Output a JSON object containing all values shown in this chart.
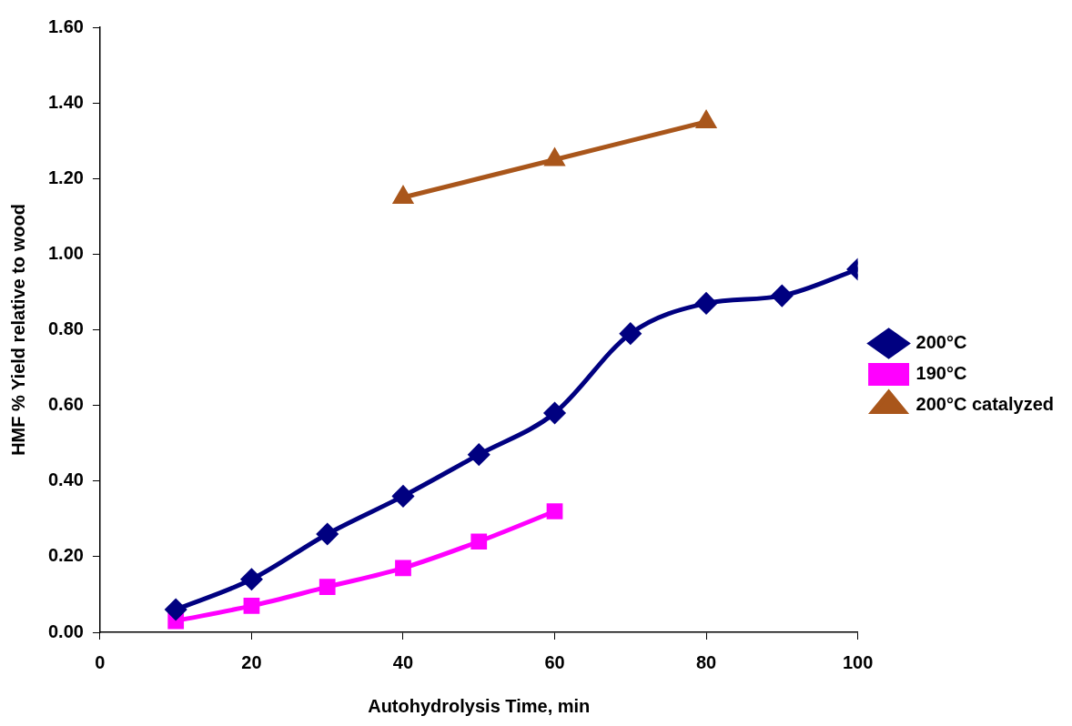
{
  "chart_data": {
    "type": "line",
    "xlabel": "Autohydrolysis Time, min",
    "ylabel": "HMF % Yield relative to wood",
    "xlim": [
      0,
      100
    ],
    "xticks": [
      0,
      20,
      40,
      60,
      80,
      100
    ],
    "ylim": [
      0,
      1.6
    ],
    "yticks": [
      {
        "value": 0,
        "label": "0.00"
      },
      {
        "value": 0.2,
        "label": "0.20"
      },
      {
        "value": 0.4,
        "label": "0.40"
      },
      {
        "value": 0.6,
        "label": "0.60"
      },
      {
        "value": 0.8,
        "label": "0.80"
      },
      {
        "value": 1.0,
        "label": "1.00"
      },
      {
        "value": 1.2,
        "label": "1.20"
      },
      {
        "value": 1.4,
        "label": "1.40"
      },
      {
        "value": 1.6,
        "label": "1.60"
      }
    ],
    "grid": false,
    "legend": "right",
    "series": [
      {
        "name": "200°C",
        "color": "#000080",
        "marker": "diamond",
        "x": [
          10,
          20,
          30,
          40,
          50,
          60,
          70,
          80,
          90,
          100
        ],
        "values": [
          0.06,
          0.14,
          0.26,
          0.36,
          0.47,
          0.58,
          0.79,
          0.87,
          0.89,
          0.96
        ]
      },
      {
        "name": "190°C",
        "color": "#ff00ff",
        "marker": "square",
        "x": [
          10,
          20,
          30,
          40,
          50,
          60
        ],
        "values": [
          0.03,
          0.07,
          0.12,
          0.17,
          0.24,
          0.32
        ]
      },
      {
        "name": "200°C catalyzed",
        "color": "#a9561b",
        "marker": "triangle",
        "x": [
          40,
          60,
          80
        ],
        "values": [
          1.15,
          1.25,
          1.35
        ]
      }
    ]
  }
}
